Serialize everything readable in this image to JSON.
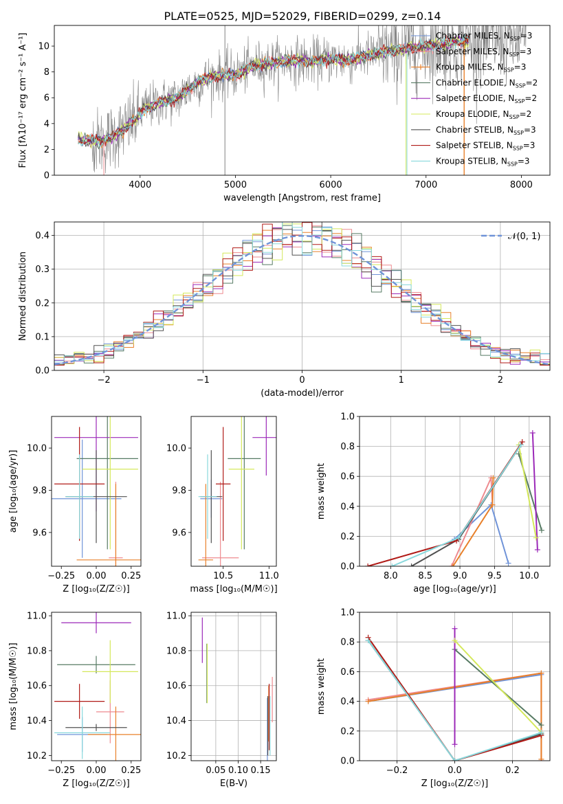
{
  "figure": {
    "title": "PLATE=0525, MJD=52029, FIBERID=0299, z=0.14"
  },
  "colors": {
    "Chabrier MILES": "#6f93d8",
    "Salpeter MILES": "#ee8a8f",
    "Kroupa MILES": "#e8802a",
    "Chabrier ELODIE": "#567a63",
    "Salpeter ELODIE": "#9b28b8",
    "Kroupa ELODIE": "#d4e85a",
    "Chabrier STELIB": "#505050",
    "Salpeter STELIB": "#b01a16",
    "Kroupa STELIB": "#88d8dc",
    "data": "#808080",
    "normal": "#6f93d8"
  },
  "chart_data": [
    {
      "id": "spectrum",
      "type": "line",
      "title": "PLATE=0525, MJD=52029, FIBERID=0299, z=0.14",
      "xlabel": "wavelength [Angstrom, rest frame]",
      "ylabel": "Flux [fλ10⁻¹⁷ erg cm⁻² s⁻¹ A⁻¹]",
      "xlim": [
        3100,
        8300
      ],
      "ylim": [
        0,
        11.6
      ],
      "xticks": [
        "4000",
        "5000",
        "6000",
        "7000",
        "8000"
      ],
      "yticks": [
        "0",
        "2",
        "4",
        "6",
        "8",
        "10"
      ],
      "legend": [
        {
          "label": "Chabrier MILES, N",
          "sub": "SSP",
          "suffix": "=3"
        },
        {
          "label": "Salpeter MILES, N",
          "sub": "SSP",
          "suffix": "=3"
        },
        {
          "label": "Kroupa MILES, N",
          "sub": "SSP",
          "suffix": "=3"
        },
        {
          "label": "Chabrier ELODIE, N",
          "sub": "SSP",
          "suffix": "=2"
        },
        {
          "label": "Salpeter ELODIE, N",
          "sub": "SSP",
          "suffix": "=2"
        },
        {
          "label": "Kroupa ELODIE, N",
          "sub": "SSP",
          "suffix": "=2"
        },
        {
          "label": "Chabrier STELIB, N",
          "sub": "SSP",
          "suffix": "=3"
        },
        {
          "label": "Salpeter STELIB, N",
          "sub": "SSP",
          "suffix": "=3"
        },
        {
          "label": "Kroupa STELIB, N",
          "sub": "SSP",
          "suffix": "=3"
        }
      ],
      "legend_position": "upper right",
      "model_continuum": {
        "x": [
          3350,
          3600,
          3800,
          3950,
          4050,
          4200,
          4400,
          4600,
          4800,
          5000,
          5200,
          5400,
          5600,
          5800,
          6000,
          6200,
          6400,
          6600,
          6800,
          7000,
          7200,
          7400
        ],
        "y": [
          2.8,
          2.6,
          3.4,
          4.3,
          5.2,
          5.6,
          6.0,
          7.2,
          7.7,
          7.8,
          8.5,
          8.7,
          8.9,
          8.8,
          9.0,
          8.9,
          9.3,
          9.6,
          9.8,
          10.0,
          10.2,
          10.4
        ]
      },
      "grid": false
    },
    {
      "id": "residuals",
      "type": "area",
      "xlabel": "(data-model)/error",
      "ylabel": "Normed distribution",
      "xlim": [
        -2.5,
        2.5
      ],
      "ylim": [
        0,
        0.44
      ],
      "xticks": [
        "−2",
        "−1",
        "0",
        "1",
        "2"
      ],
      "yticks": [
        "0.0",
        "0.1",
        "0.2",
        "0.3",
        "0.4"
      ],
      "legend": [
        "𝒩(0, 1)"
      ],
      "legend_position": "upper right",
      "histogram_bins": 50,
      "grid": true
    },
    {
      "id": "age_vs_Z",
      "type": "scatter",
      "xlabel": "Z [log₁₀(Z/Z☉)]",
      "ylabel": "age  [log₁₀(age/yr)]",
      "xlim": [
        -0.32,
        0.32
      ],
      "ylim": [
        9.44,
        10.15
      ],
      "xticks": [
        "−0.25",
        "0.00",
        "0.25"
      ],
      "yticks": [
        "9.6",
        "9.8",
        "10.0"
      ],
      "points": [
        {
          "model": "Chabrier MILES",
          "x": -0.1,
          "xerr": 0.28,
          "y": 9.76,
          "yerr": 0.28
        },
        {
          "model": "Salpeter MILES",
          "x": 0.14,
          "xerr": 0.05,
          "y": 9.48,
          "yerr": 0.36
        },
        {
          "model": "Kroupa MILES",
          "x": 0.14,
          "xerr": 0.28,
          "y": 9.47,
          "yerr": 0.36
        },
        {
          "model": "Chabrier ELODIE",
          "x": 0.08,
          "xerr": 0.22,
          "y": 9.95,
          "yerr": 0.43
        },
        {
          "model": "Salpeter ELODIE",
          "x": 0.0,
          "xerr": 0.3,
          "y": 10.05,
          "yerr": 0.35
        },
        {
          "model": "Kroupa ELODIE",
          "x": 0.1,
          "xerr": 0.2,
          "y": 9.9,
          "yerr": 0.38
        },
        {
          "model": "Chabrier STELIB",
          "x": 0.0,
          "xerr": 0.22,
          "y": 9.77,
          "yerr": 0.22
        },
        {
          "model": "Salpeter STELIB",
          "x": -0.12,
          "xerr": 0.18,
          "y": 9.83,
          "yerr": 0.27
        },
        {
          "model": "Kroupa STELIB",
          "x": -0.12,
          "xerr": 0.1,
          "y": 9.77,
          "yerr": 0.2
        }
      ],
      "grid": false
    },
    {
      "id": "age_vs_mass",
      "type": "scatter",
      "xlabel": "mass [log₁₀(M/M☉)]",
      "ylabel": "",
      "xlim": [
        10.15,
        11.08
      ],
      "ylim": [
        9.44,
        10.15
      ],
      "xticks": [
        "10.5",
        "11.0"
      ],
      "yticks": [
        "9.6",
        "9.8",
        "10.0"
      ],
      "points": [
        {
          "model": "Chabrier MILES",
          "x": 10.37,
          "xerr": 0.12,
          "y": 9.76,
          "yerr": 0.09
        },
        {
          "model": "Salpeter MILES",
          "x": 10.47,
          "xerr": 0.2,
          "y": 9.48,
          "yerr": 0.36
        },
        {
          "model": "Kroupa MILES",
          "x": 10.31,
          "xerr": 0.08,
          "y": 9.47,
          "yerr": 0.36
        },
        {
          "model": "Chabrier ELODIE",
          "x": 10.73,
          "xerr": 0.18,
          "y": 9.95,
          "yerr": 0.43
        },
        {
          "model": "Salpeter ELODIE",
          "x": 10.97,
          "xerr": 0.15,
          "y": 10.05,
          "yerr": 0.18
        },
        {
          "model": "Kroupa ELODIE",
          "x": 10.7,
          "xerr": 0.14,
          "y": 9.9,
          "yerr": 0.38
        },
        {
          "model": "Chabrier STELIB",
          "x": 10.37,
          "xerr": 0.12,
          "y": 9.77,
          "yerr": 0.22
        },
        {
          "model": "Salpeter STELIB",
          "x": 10.5,
          "xerr": 0.08,
          "y": 9.83,
          "yerr": 0.27
        },
        {
          "model": "Kroupa STELIB",
          "x": 10.33,
          "xerr": 0.1,
          "y": 9.77,
          "yerr": 0.2
        }
      ],
      "grid": false
    },
    {
      "id": "mass_weight_vs_age",
      "type": "line",
      "xlabel": "age  [log₁₀(age/yr)]",
      "ylabel": "mass weight",
      "xlim": [
        7.55,
        10.3
      ],
      "ylim": [
        0,
        1
      ],
      "xticks": [
        "8.0",
        "8.5",
        "9.0",
        "9.5",
        "10.0"
      ],
      "yticks": [
        "0.0",
        "0.2",
        "0.4",
        "0.6",
        "0.8",
        "1.0"
      ],
      "series": [
        {
          "model": "Chabrier MILES",
          "x": [
            8.92,
            9.45,
            9.7
          ],
          "y": [
            0.18,
            0.41,
            0.02
          ]
        },
        {
          "model": "Salpeter MILES",
          "x": [
            8.88,
            9.45,
            9.47
          ],
          "y": [
            0.0,
            0.59,
            0.41
          ]
        },
        {
          "model": "Kroupa MILES",
          "x": [
            8.9,
            9.47,
            9.48
          ],
          "y": [
            0.0,
            0.41,
            0.59
          ]
        },
        {
          "model": "Chabrier ELODIE",
          "x": [
            9.85,
            10.18
          ],
          "y": [
            0.75,
            0.24
          ]
        },
        {
          "model": "Salpeter ELODIE",
          "x": [
            10.05,
            10.12
          ],
          "y": [
            0.89,
            0.11
          ]
        },
        {
          "model": "Kroupa ELODIE",
          "x": [
            9.85,
            10.1
          ],
          "y": [
            0.81,
            0.19
          ]
        },
        {
          "model": "Chabrier STELIB",
          "x": [
            8.3,
            8.98,
            9.88
          ],
          "y": [
            0.0,
            0.18,
            0.81
          ]
        },
        {
          "model": "Salpeter STELIB",
          "x": [
            7.67,
            8.95,
            9.9
          ],
          "y": [
            0.0,
            0.17,
            0.83
          ]
        },
        {
          "model": "Kroupa STELIB",
          "x": [
            8.02,
            8.98,
            9.88
          ],
          "y": [
            0.0,
            0.19,
            0.81
          ]
        }
      ],
      "grid": true
    },
    {
      "id": "mass_vs_Z",
      "type": "scatter",
      "xlabel": "Z [log₁₀(Z/Z☉)]",
      "ylabel": "mass [log₁₀(M/M☉)]",
      "xlim": [
        -0.32,
        0.32
      ],
      "ylim": [
        10.17,
        11.02
      ],
      "xticks": [
        "−0.25",
        "0.00",
        "0.25"
      ],
      "yticks": [
        "10.2",
        "10.4",
        "10.6",
        "10.8",
        "11.0"
      ],
      "points": [
        {
          "model": "Chabrier MILES",
          "x": -0.1,
          "xerr": 0.18,
          "y": 10.32,
          "yerr": 0.1
        },
        {
          "model": "Salpeter MILES",
          "x": 0.1,
          "xerr": 0.1,
          "y": 10.45,
          "yerr": 0.18
        },
        {
          "model": "Kroupa MILES",
          "x": 0.14,
          "xerr": 0.2,
          "y": 10.32,
          "yerr": 0.16
        },
        {
          "model": "Chabrier ELODIE",
          "x": 0.0,
          "xerr": 0.28,
          "y": 10.72,
          "yerr": 0.05
        },
        {
          "model": "Salpeter ELODIE",
          "x": 0.0,
          "xerr": 0.25,
          "y": 10.96,
          "yerr": 0.06
        },
        {
          "model": "Kroupa ELODIE",
          "x": 0.1,
          "xerr": 0.2,
          "y": 10.68,
          "yerr": 0.18
        },
        {
          "model": "Chabrier STELIB",
          "x": 0.0,
          "xerr": 0.22,
          "y": 10.36,
          "yerr": 0.02
        },
        {
          "model": "Salpeter STELIB",
          "x": -0.12,
          "xerr": 0.18,
          "y": 10.51,
          "yerr": 0.1
        },
        {
          "model": "Kroupa STELIB",
          "x": -0.1,
          "xerr": 0.2,
          "y": 10.33,
          "yerr": 0.15
        }
      ],
      "grid": false
    },
    {
      "id": "mass_vs_EBV",
      "type": "scatter",
      "xlabel": "E(B-V)",
      "ylabel": "",
      "xlim": [
        -0.005,
        0.185
      ],
      "ylim": [
        10.17,
        11.02
      ],
      "xticks": [
        "0.05",
        "0.10",
        "0.15"
      ],
      "yticks": [
        "10.2",
        "10.4",
        "10.6",
        "10.8",
        "11.0"
      ],
      "points": [
        {
          "model": "Chabrier MILES",
          "x": 0.165,
          "y": 10.35,
          "yerr": 0.18
        },
        {
          "model": "Salpeter MILES",
          "x": 0.176,
          "y": 10.52,
          "yerr": 0.13
        },
        {
          "model": "Kroupa MILES",
          "x": 0.168,
          "y": 10.44,
          "yerr": 0.16
        },
        {
          "model": "Chabrier ELODIE",
          "x": 0.03,
          "y": 10.67,
          "yerr": 0.17
        },
        {
          "model": "Salpeter ELODIE",
          "x": 0.02,
          "y": 10.86,
          "yerr": 0.13
        },
        {
          "model": "Kroupa ELODIE",
          "x": 0.031,
          "y": 10.67,
          "yerr": 0.17
        },
        {
          "model": "Chabrier STELIB",
          "x": 0.166,
          "y": 10.37,
          "yerr": 0.17
        },
        {
          "model": "Salpeter STELIB",
          "x": 0.169,
          "y": 10.42,
          "yerr": 0.19
        },
        {
          "model": "Kroupa STELIB",
          "x": 0.171,
          "y": 10.37,
          "yerr": 0.17
        }
      ],
      "grid": true
    },
    {
      "id": "mass_weight_vs_Z",
      "type": "line",
      "xlabel": "Z [log₁₀(Z/Z☉)]",
      "ylabel": "mass weight",
      "xlim": [
        -0.33,
        0.33
      ],
      "ylim": [
        0,
        1
      ],
      "xticks": [
        "−0.2",
        "0.0",
        "0.2"
      ],
      "yticks": [
        "0.0",
        "0.2",
        "0.4",
        "0.6",
        "0.8",
        "1.0"
      ],
      "series": [
        {
          "model": "Chabrier MILES",
          "x": [
            -0.3,
            0.3
          ],
          "y": [
            0.4,
            0.58
          ]
        },
        {
          "model": "Salpeter MILES",
          "x": [
            -0.3,
            0.3,
            0.3
          ],
          "y": [
            0.41,
            0.59,
            0.0
          ]
        },
        {
          "model": "Kroupa MILES",
          "x": [
            -0.3,
            0.3,
            0.3
          ],
          "y": [
            0.4,
            0.59,
            0.01
          ]
        },
        {
          "model": "Chabrier ELODIE",
          "x": [
            0.0,
            0.3
          ],
          "y": [
            0.75,
            0.24
          ]
        },
        {
          "model": "Salpeter ELODIE",
          "x": [
            0.0,
            0.0
          ],
          "y": [
            0.89,
            0.11
          ]
        },
        {
          "model": "Kroupa ELODIE",
          "x": [
            0.0,
            0.3
          ],
          "y": [
            0.81,
            0.19
          ]
        },
        {
          "model": "Chabrier STELIB",
          "x": [
            -0.3,
            0.0,
            0.3
          ],
          "y": [
            0.81,
            0.0,
            0.18
          ]
        },
        {
          "model": "Salpeter STELIB",
          "x": [
            -0.3,
            0.0,
            0.3
          ],
          "y": [
            0.83,
            0.0,
            0.17
          ]
        },
        {
          "model": "Kroupa STELIB",
          "x": [
            -0.3,
            0.0,
            0.3
          ],
          "y": [
            0.81,
            0.0,
            0.19
          ]
        }
      ],
      "grid": true
    }
  ]
}
